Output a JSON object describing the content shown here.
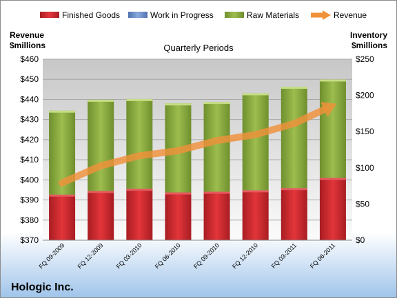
{
  "chart_data": {
    "type": "bar",
    "subtype": "stacked-bar-with-line",
    "title": "Quarterly Periods",
    "company": "Hologic Inc.",
    "categories": [
      "FQ 09-2009",
      "FQ 12-2009",
      "FQ 03-2010",
      "FQ 06-2010",
      "FQ 09-2010",
      "FQ 12-2010",
      "FQ 03-2011",
      "FQ 06-2011"
    ],
    "left_axis": {
      "label_line1": "Revenue",
      "label_line2": "$millions",
      "min": 370,
      "max": 460,
      "step": 10,
      "prefix": "$"
    },
    "right_axis": {
      "label_line1": "Inventory",
      "label_line2": "$millions",
      "min": 0,
      "max": 250,
      "step": 50,
      "prefix": "$"
    },
    "series": [
      {
        "name": "Finished Goods",
        "axis": "right",
        "type": "bar",
        "color": "#c8262b",
        "values": [
          63,
          68,
          71,
          66,
          67,
          69,
          72,
          86
        ]
      },
      {
        "name": "Work in Progress",
        "axis": "right",
        "type": "bar",
        "color": "#6d8fc8",
        "values": [
          0,
          0,
          0,
          0,
          0,
          0,
          0,
          0
        ]
      },
      {
        "name": "Raw Materials",
        "axis": "right",
        "type": "bar",
        "color": "#8bac3e",
        "values": [
          116,
          126,
          124,
          123,
          124,
          134,
          140,
          136
        ]
      },
      {
        "name": "Revenue",
        "axis": "left",
        "type": "line",
        "color": "#f0913a",
        "values": [
          398.5,
          407,
          412,
          414.5,
          419.5,
          422.5,
          428,
          437
        ]
      }
    ],
    "grid": true,
    "legend": "top"
  }
}
